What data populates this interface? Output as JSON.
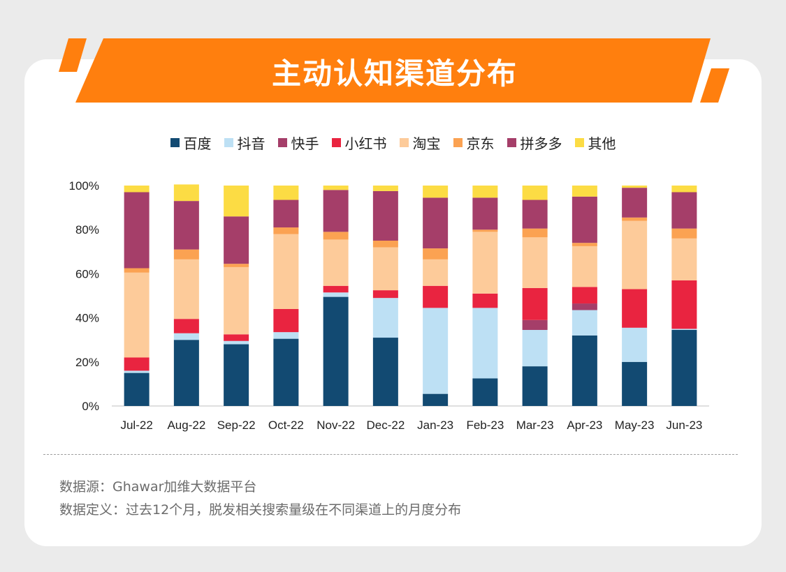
{
  "title": "主动认知渠道分布",
  "colors": {
    "banner_orange": "#ff7f0e"
  },
  "chart_data": {
    "type": "bar",
    "stacked": true,
    "percent": true,
    "categories": [
      "Jul-22",
      "Aug-22",
      "Sep-22",
      "Oct-22",
      "Nov-22",
      "Dec-22",
      "Jan-23",
      "Feb-23",
      "Mar-23",
      "Apr-23",
      "May-23",
      "Jun-23"
    ],
    "series": [
      {
        "name": "百度",
        "color": "#124a72",
        "values": [
          15,
          30,
          28,
          30.5,
          49.5,
          31,
          5.5,
          12.5,
          18,
          32,
          20,
          34.5
        ]
      },
      {
        "name": "抖音",
        "color": "#bde0f4",
        "values": [
          1,
          3,
          1.5,
          3,
          2,
          18,
          39,
          32,
          16.5,
          11.5,
          15.5,
          0.5
        ]
      },
      {
        "name": "快手",
        "color": "#a53e69",
        "values": [
          0,
          0,
          0,
          0,
          0,
          0,
          0,
          0,
          4.5,
          3,
          0,
          0
        ]
      },
      {
        "name": "小红书",
        "color": "#e92440",
        "values": [
          6,
          6.5,
          3,
          10.5,
          3,
          3.5,
          10,
          6.5,
          14.5,
          7.5,
          17.5,
          22
        ]
      },
      {
        "name": "淘宝",
        "color": "#fdcb9a",
        "values": [
          38.5,
          27,
          30.5,
          34,
          21,
          19.5,
          12,
          28,
          23,
          18.5,
          31,
          19
        ]
      },
      {
        "name": "京东",
        "color": "#fba252",
        "values": [
          2,
          4.5,
          1.5,
          3,
          3.5,
          3,
          5,
          1,
          4,
          1.5,
          1.5,
          4.5
        ]
      },
      {
        "name": "拼多多",
        "color": "#a53e69",
        "values": [
          34.5,
          22,
          21.5,
          12.5,
          19,
          22.5,
          23,
          14.5,
          13,
          21,
          13.5,
          16.5
        ]
      },
      {
        "name": "其他",
        "color": "#fcdc44",
        "values": [
          3,
          7.5,
          14,
          6.5,
          2,
          2.5,
          5.5,
          5.5,
          6.5,
          5,
          1,
          3
        ]
      }
    ],
    "legend": [
      "百度",
      "抖音",
      "快手",
      "小红书",
      "淘宝",
      "京东",
      "拼多多",
      "其他"
    ],
    "ylim": [
      0,
      100
    ],
    "yticks": [
      0,
      20,
      40,
      60,
      80,
      100
    ],
    "ytick_labels": [
      "0%",
      "20%",
      "40%",
      "60%",
      "80%",
      "100%"
    ],
    "legend_position": "top-center",
    "grid": false
  },
  "notes": {
    "source": "数据源：Ghawar加维大数据平台",
    "definition": "数据定义：过去12个月，脱发相关搜索量级在不同渠道上的月度分布"
  }
}
